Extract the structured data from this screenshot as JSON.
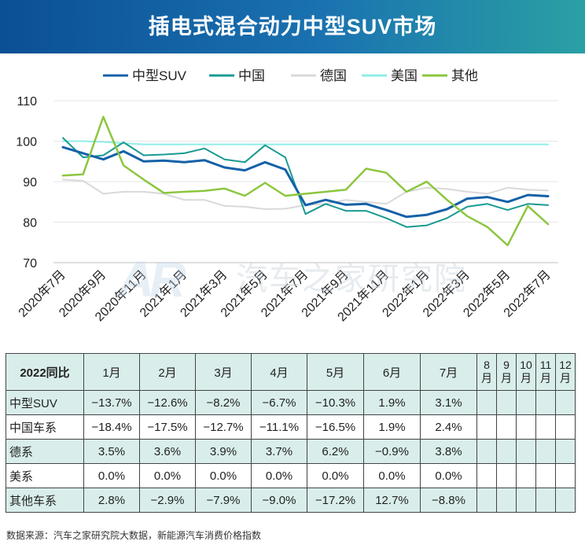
{
  "title": "插电式混合动力中型SUV市场",
  "watermark": "汽车之家研究院",
  "watermark_logo": "AR",
  "source": "数据来源：汽车之家研究院大数据，新能源汽车消费价格指数",
  "chart_data": {
    "type": "line",
    "title": "插电式混合动力中型SUV市场",
    "xlabel": "",
    "ylabel": "",
    "ylim": [
      70,
      110
    ],
    "yticks": [
      70,
      80,
      90,
      100,
      110
    ],
    "grid": "horizontal",
    "legend_position": "top",
    "x": [
      "2020年7月",
      "2020年8月",
      "2020年9月",
      "2020年10月",
      "2020年11月",
      "2020年12月",
      "2021年1月",
      "2021年2月",
      "2021年3月",
      "2021年4月",
      "2021年5月",
      "2021年6月",
      "2021年7月",
      "2021年8月",
      "2021年9月",
      "2021年10月",
      "2021年11月",
      "2021年12月",
      "2022年1月",
      "2022年2月",
      "2022年3月",
      "2022年4月",
      "2022年5月",
      "2022年6月",
      "2022年7月"
    ],
    "x_tick_labels": [
      "2020年7月",
      "2020年9月",
      "2020年11月",
      "2021年1月",
      "2021年3月",
      "2021年5月",
      "2021年7月",
      "2021年9月",
      "2021年11月",
      "2022年1月",
      "2022年3月",
      "2022年5月",
      "2022年7月"
    ],
    "series": [
      {
        "name": "中型SUV",
        "color": "#1461a8",
        "width": 3,
        "values": [
          98.5,
          97,
          95.5,
          97.5,
          95,
          95.2,
          94.8,
          95.3,
          93.5,
          92.8,
          94.8,
          93,
          84.2,
          85.5,
          84.3,
          84.5,
          83,
          81.3,
          81.8,
          83.2,
          85.8,
          86.2,
          85,
          86.7,
          86.4
        ]
      },
      {
        "name": "中国",
        "color": "#1a9a93",
        "width": 2,
        "values": [
          100.8,
          96,
          96.5,
          99.7,
          96.5,
          96.7,
          97,
          98.2,
          95.5,
          94.8,
          99,
          96,
          82,
          84.5,
          82.8,
          82.8,
          81,
          78.8,
          79.2,
          81,
          83.8,
          84.5,
          83,
          84.5,
          84.2
        ]
      },
      {
        "name": "德国",
        "color": "#d9d9d9",
        "width": 2,
        "values": [
          90.5,
          90.2,
          87,
          87.5,
          87.5,
          87,
          85.5,
          85.5,
          84,
          83.8,
          83.2,
          83.3,
          84.2,
          84.5,
          85.5,
          85,
          84.5,
          87.5,
          88.5,
          88.2,
          87.5,
          87,
          88.5,
          88,
          87.8
        ]
      },
      {
        "name": "美国",
        "color": "#8eeee6",
        "width": 2,
        "values": [
          100,
          100,
          99.8,
          99.5,
          99.2,
          99.2,
          99.2,
          99.2,
          99.2,
          99.2,
          99.2,
          99.2,
          99.2,
          99.2,
          99.2,
          99.2,
          99.2,
          99.2,
          99.2,
          99.2,
          99.2,
          99.2,
          99.2,
          99.2,
          99.2
        ]
      },
      {
        "name": "其他",
        "color": "#8cc63f",
        "width": 2.5,
        "values": [
          91.5,
          91.8,
          106,
          94,
          90.5,
          87.2,
          87.5,
          87.7,
          88.3,
          86.5,
          89.7,
          86.5,
          87,
          87.5,
          88,
          93.2,
          92.2,
          87.5,
          90,
          85.5,
          81.5,
          78.8,
          74.3,
          84,
          79.5
        ]
      }
    ]
  },
  "table": {
    "corner": "2022同比",
    "months": [
      "1月",
      "2月",
      "3月",
      "4月",
      "5月",
      "6月",
      "7月",
      "8月",
      "9月",
      "10月",
      "11月",
      "12月"
    ],
    "rows": [
      {
        "label": "中型SUV",
        "values": [
          "−13.7%",
          "−12.6%",
          "−8.2%",
          "−6.7%",
          "−10.3%",
          "1.9%",
          "3.1%",
          "",
          "",
          "",
          "",
          ""
        ]
      },
      {
        "label": "中国车系",
        "values": [
          "−18.4%",
          "−17.5%",
          "−12.7%",
          "−11.1%",
          "−16.5%",
          "1.9%",
          "2.4%",
          "",
          "",
          "",
          "",
          ""
        ]
      },
      {
        "label": "德系",
        "values": [
          "3.5%",
          "3.6%",
          "3.9%",
          "3.7%",
          "6.2%",
          "−0.9%",
          "3.8%",
          "",
          "",
          "",
          "",
          ""
        ]
      },
      {
        "label": "美系",
        "values": [
          "0.0%",
          "0.0%",
          "0.0%",
          "0.0%",
          "0.0%",
          "0.0%",
          "0.0%",
          "",
          "",
          "",
          "",
          ""
        ]
      },
      {
        "label": "其他车系",
        "values": [
          "2.8%",
          "−2.9%",
          "−7.9%",
          "−9.0%",
          "−17.2%",
          "12.7%",
          "−8.8%",
          "",
          "",
          "",
          "",
          ""
        ]
      }
    ]
  }
}
